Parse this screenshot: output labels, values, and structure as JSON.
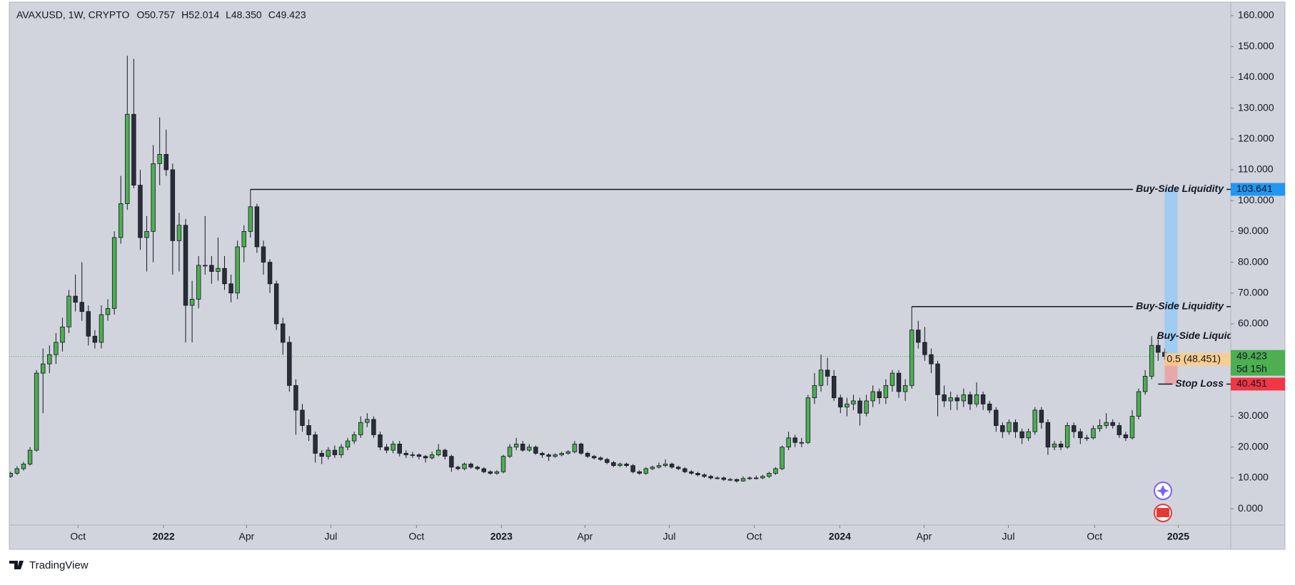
{
  "chart_data": {
    "type": "candlestick",
    "symbol": "AVAXUSD, 1W, CRYPTO",
    "ohlc_text": [
      "O50.757",
      "H52.014",
      "L48.350",
      "C49.423"
    ],
    "footer": "TradingView",
    "up_color": "#4caf50",
    "down_color": "#2a2e39",
    "grid": false,
    "ylim": [
      -5.3,
      164.4
    ],
    "yticks": [
      {
        "value": 0,
        "label": "0.000"
      },
      {
        "value": 10,
        "label": "10.000"
      },
      {
        "value": 20,
        "label": "20.000"
      },
      {
        "value": 30,
        "label": "30.000"
      },
      {
        "value": 40,
        "label": "40.000"
      },
      {
        "value": 50,
        "label": "50.000"
      },
      {
        "value": 60,
        "label": "60.000"
      },
      {
        "value": 70,
        "label": "70.000"
      },
      {
        "value": 80,
        "label": "80.000"
      },
      {
        "value": 90,
        "label": "90.000"
      },
      {
        "value": 100,
        "label": "100.000"
      },
      {
        "value": 110,
        "label": "110.000"
      },
      {
        "value": 120,
        "label": "120.000"
      },
      {
        "value": 130,
        "label": "130.000"
      },
      {
        "value": 140,
        "label": "140.000"
      },
      {
        "value": 150,
        "label": "150.000"
      },
      {
        "value": 160,
        "label": "160.000"
      }
    ],
    "xlim": [
      -0.2,
      188.2
    ],
    "xticks": [
      {
        "value": 10.4,
        "label": "Oct"
      },
      {
        "value": 23.6,
        "label": "2022",
        "bold": true
      },
      {
        "value": 36.4,
        "label": "Apr"
      },
      {
        "value": 49.4,
        "label": "Jul"
      },
      {
        "value": 62.6,
        "label": "Oct"
      },
      {
        "value": 75.7,
        "label": "2023",
        "bold": true
      },
      {
        "value": 88.6,
        "label": "Apr"
      },
      {
        "value": 101.6,
        "label": "Jul"
      },
      {
        "value": 114.7,
        "label": "Oct"
      },
      {
        "value": 127.9,
        "label": "2024",
        "bold": true
      },
      {
        "value": 140.9,
        "label": "Apr"
      },
      {
        "value": 153.9,
        "label": "Jul"
      },
      {
        "value": 167.2,
        "label": "Oct"
      },
      {
        "value": 180.1,
        "label": "2025",
        "bold": true
      }
    ],
    "candles": [
      [
        10.5,
        12,
        10,
        11.5
      ],
      [
        11.5,
        13.8,
        11,
        13
      ],
      [
        13,
        15.2,
        12.4,
        14.5
      ],
      [
        14.5,
        20,
        14,
        19
      ],
      [
        19,
        45,
        18.5,
        44
      ],
      [
        44,
        52,
        31,
        47
      ],
      [
        47,
        53,
        44,
        50
      ],
      [
        50,
        57,
        47,
        54
      ],
      [
        54,
        62,
        51,
        59
      ],
      [
        59,
        71,
        57,
        69
      ],
      [
        69,
        76,
        64,
        67
      ],
      [
        67,
        80,
        61,
        64
      ],
      [
        64,
        66,
        53,
        56
      ],
      [
        56,
        58,
        52,
        54
      ],
      [
        54,
        66,
        52,
        63
      ],
      [
        63,
        68,
        61,
        65
      ],
      [
        65,
        90,
        63,
        88
      ],
      [
        88,
        108,
        86,
        99
      ],
      [
        99,
        147,
        97,
        128
      ],
      [
        128,
        146,
        104,
        105
      ],
      [
        105,
        110,
        84,
        88
      ],
      [
        88,
        95,
        77,
        90
      ],
      [
        90,
        118,
        80,
        112
      ],
      [
        112,
        127,
        105,
        115
      ],
      [
        115,
        123,
        108,
        110
      ],
      [
        110,
        112,
        76,
        87
      ],
      [
        87,
        96,
        77,
        92
      ],
      [
        92,
        94,
        54,
        66
      ],
      [
        66,
        74,
        54,
        68
      ],
      [
        68,
        82,
        65,
        79
      ],
      [
        79,
        95,
        76,
        79
      ],
      [
        79,
        82,
        73,
        77
      ],
      [
        77,
        88,
        74,
        78
      ],
      [
        78,
        82,
        71,
        73
      ],
      [
        73,
        76,
        67,
        70
      ],
      [
        70,
        87,
        68,
        85
      ],
      [
        85,
        92,
        80,
        90
      ],
      [
        90,
        103.641,
        88,
        98
      ],
      [
        98,
        99,
        83,
        85
      ],
      [
        85,
        87,
        76,
        80
      ],
      [
        80,
        81,
        70,
        73
      ],
      [
        73,
        74,
        58,
        60
      ],
      [
        60,
        62,
        50,
        54
      ],
      [
        54,
        56,
        38,
        40
      ],
      [
        40,
        42,
        24,
        32
      ],
      [
        32,
        34,
        25,
        27
      ],
      [
        27,
        29,
        22,
        24
      ],
      [
        24,
        25,
        15,
        18
      ],
      [
        18,
        19,
        14.5,
        17
      ],
      [
        17,
        20,
        16,
        19
      ],
      [
        19,
        20.5,
        16.5,
        17.5
      ],
      [
        17.5,
        21,
        16.5,
        20
      ],
      [
        20,
        23,
        19,
        22
      ],
      [
        22,
        25,
        21,
        24
      ],
      [
        24,
        30,
        23,
        28
      ],
      [
        28,
        31,
        26.5,
        29
      ],
      [
        29,
        30,
        23,
        24
      ],
      [
        24,
        25,
        19,
        20
      ],
      [
        20,
        21,
        18,
        19
      ],
      [
        19,
        22,
        18,
        21
      ],
      [
        21,
        22,
        17,
        18
      ],
      [
        18,
        19,
        16.5,
        17.5
      ],
      [
        17.5,
        18.5,
        16.5,
        17.5
      ],
      [
        17.5,
        18,
        16,
        17
      ],
      [
        17,
        17.5,
        15,
        16.5
      ],
      [
        16.5,
        18.5,
        16,
        17.5
      ],
      [
        17.5,
        21,
        17,
        19
      ],
      [
        19,
        19.5,
        16,
        17
      ],
      [
        17,
        17.5,
        12,
        13.5
      ],
      [
        13.5,
        14,
        12.5,
        13
      ],
      [
        13,
        15,
        12.5,
        14.5
      ],
      [
        14.5,
        15,
        13,
        13.5
      ],
      [
        13.5,
        14,
        12.5,
        13
      ],
      [
        13,
        13.5,
        11.5,
        12
      ],
      [
        12,
        12.5,
        11,
        11.5
      ],
      [
        11.5,
        12.5,
        11,
        12
      ],
      [
        12,
        17.5,
        11.5,
        17
      ],
      [
        17,
        21,
        16.5,
        20
      ],
      [
        20,
        23,
        19,
        21
      ],
      [
        21,
        22,
        18.5,
        19
      ],
      [
        19,
        21,
        18.5,
        20
      ],
      [
        20,
        20.5,
        17.5,
        18
      ],
      [
        18,
        18.5,
        16.5,
        17.5
      ],
      [
        17.5,
        18,
        15.5,
        17
      ],
      [
        17,
        18,
        16.5,
        17.5
      ],
      [
        17.5,
        18.5,
        17,
        18
      ],
      [
        18,
        19,
        17.5,
        18.5
      ],
      [
        18.5,
        22,
        18,
        21
      ],
      [
        21,
        21.5,
        17.5,
        18
      ],
      [
        18,
        18.5,
        16.5,
        17
      ],
      [
        17,
        17.5,
        16,
        16.5
      ],
      [
        16.5,
        17,
        15.5,
        16
      ],
      [
        16,
        16.5,
        14.5,
        15
      ],
      [
        15,
        15.5,
        13.5,
        14
      ],
      [
        14,
        15,
        13.5,
        14.5
      ],
      [
        14.5,
        15,
        13.5,
        14
      ],
      [
        14,
        14.5,
        11.5,
        12
      ],
      [
        12,
        12.5,
        11,
        11.5
      ],
      [
        11.5,
        13.5,
        11,
        13
      ],
      [
        13,
        14,
        12.5,
        13.5
      ],
      [
        13.5,
        15,
        13,
        14
      ],
      [
        14,
        16,
        13.5,
        14.5
      ],
      [
        14.5,
        15,
        13,
        13.5
      ],
      [
        13.5,
        14,
        12.5,
        13
      ],
      [
        13,
        13.5,
        11.5,
        12
      ],
      [
        12,
        12.5,
        11,
        11.5
      ],
      [
        11.5,
        12,
        10.5,
        11
      ],
      [
        11,
        11.5,
        10,
        10.5
      ],
      [
        10.5,
        11,
        9.5,
        10
      ],
      [
        10,
        10.5,
        9.5,
        10
      ],
      [
        10,
        10.5,
        9,
        9.5
      ],
      [
        9.5,
        10,
        9,
        9.5
      ],
      [
        9.5,
        9.8,
        8.5,
        9
      ],
      [
        9,
        10.5,
        8.8,
        9.8
      ],
      [
        9.8,
        10.5,
        9.3,
        10
      ],
      [
        10,
        10.8,
        9.5,
        10
      ],
      [
        10,
        11,
        9.6,
        10.5
      ],
      [
        10.5,
        12,
        10,
        11.5
      ],
      [
        11.5,
        13.5,
        11,
        13
      ],
      [
        13,
        20.5,
        12.5,
        20
      ],
      [
        20,
        25,
        19,
        23
      ],
      [
        23,
        24,
        20,
        21.5
      ],
      [
        21.5,
        23,
        20,
        21.5
      ],
      [
        21.5,
        37,
        21,
        36
      ],
      [
        36,
        44,
        34,
        40
      ],
      [
        40,
        50,
        38,
        45
      ],
      [
        45,
        49,
        40,
        43
      ],
      [
        43,
        45,
        35,
        36
      ],
      [
        36,
        37,
        31,
        33
      ],
      [
        33,
        36,
        30,
        34
      ],
      [
        34,
        37,
        32,
        35
      ],
      [
        35,
        36,
        27,
        31
      ],
      [
        31,
        37,
        30,
        35
      ],
      [
        35,
        40,
        33,
        38
      ],
      [
        38,
        39,
        34,
        36
      ],
      [
        36,
        42,
        34,
        40
      ],
      [
        40,
        45,
        38,
        44
      ],
      [
        44,
        45,
        36,
        38
      ],
      [
        38,
        42,
        35,
        40
      ],
      [
        40,
        65.6,
        39,
        58
      ],
      [
        58,
        61,
        52,
        54
      ],
      [
        54,
        59,
        48,
        50
      ],
      [
        50,
        52,
        44,
        47
      ],
      [
        47,
        48,
        30,
        37
      ],
      [
        37,
        40,
        33,
        35
      ],
      [
        35,
        38,
        32,
        36
      ],
      [
        36,
        37,
        32,
        35
      ],
      [
        35,
        39,
        33,
        37
      ],
      [
        37,
        38,
        32,
        34
      ],
      [
        34,
        41,
        33,
        37
      ],
      [
        37,
        38,
        32,
        34
      ],
      [
        34,
        35,
        31,
        32
      ],
      [
        32,
        33,
        25,
        27
      ],
      [
        27,
        28,
        23,
        25
      ],
      [
        25,
        29,
        24,
        28
      ],
      [
        28,
        29,
        23,
        25
      ],
      [
        25,
        26,
        21,
        23
      ],
      [
        23,
        26,
        22,
        25
      ],
      [
        25,
        33,
        24,
        32
      ],
      [
        32,
        33,
        26,
        28
      ],
      [
        28,
        29,
        17.5,
        20
      ],
      [
        20,
        22,
        19,
        21
      ],
      [
        21,
        22,
        19,
        20
      ],
      [
        20,
        28,
        19.5,
        27
      ],
      [
        27,
        28,
        23,
        25
      ],
      [
        25,
        26,
        21,
        23
      ],
      [
        23,
        24,
        22,
        23
      ],
      [
        23,
        27,
        22.5,
        26
      ],
      [
        26,
        29,
        25,
        27
      ],
      [
        27,
        31,
        26,
        28
      ],
      [
        28,
        29,
        26,
        27
      ],
      [
        27,
        28,
        23,
        24
      ],
      [
        24,
        25,
        22,
        23
      ],
      [
        23,
        32,
        22.5,
        30
      ],
      [
        30,
        39,
        29,
        38
      ],
      [
        38,
        45,
        37,
        43
      ],
      [
        43,
        56,
        42,
        53
      ],
      [
        53,
        55,
        48,
        50.757
      ],
      [
        50.757,
        52.014,
        48.35,
        49.423
      ]
    ],
    "levels": [
      {
        "label": "Buy-Side Liquidity",
        "value": 103.641,
        "start": 37
      },
      {
        "label": "Buy-Side Liquidity",
        "value": 65.6,
        "start": 139
      }
    ],
    "notes": [
      {
        "label": "Buy-Side Liquidity",
        "value": 56,
        "start": 176.8
      }
    ],
    "fib": {
      "label": "0.5 (48.451)",
      "value": 48.451,
      "start": 178
    },
    "stop": {
      "label": "Stop Loss",
      "value": 40.451,
      "start": 177
    },
    "position": {
      "target": 103.641,
      "entry": 48.451,
      "stop": 40.451,
      "start": 178,
      "end": 180
    },
    "price_tags": [
      {
        "value": 103.641,
        "color": "#2196f3"
      },
      {
        "value": 49.423,
        "sub": "5d 15h",
        "color": "#4caf50"
      },
      {
        "value": 40.451,
        "color": "#f23645"
      }
    ]
  }
}
